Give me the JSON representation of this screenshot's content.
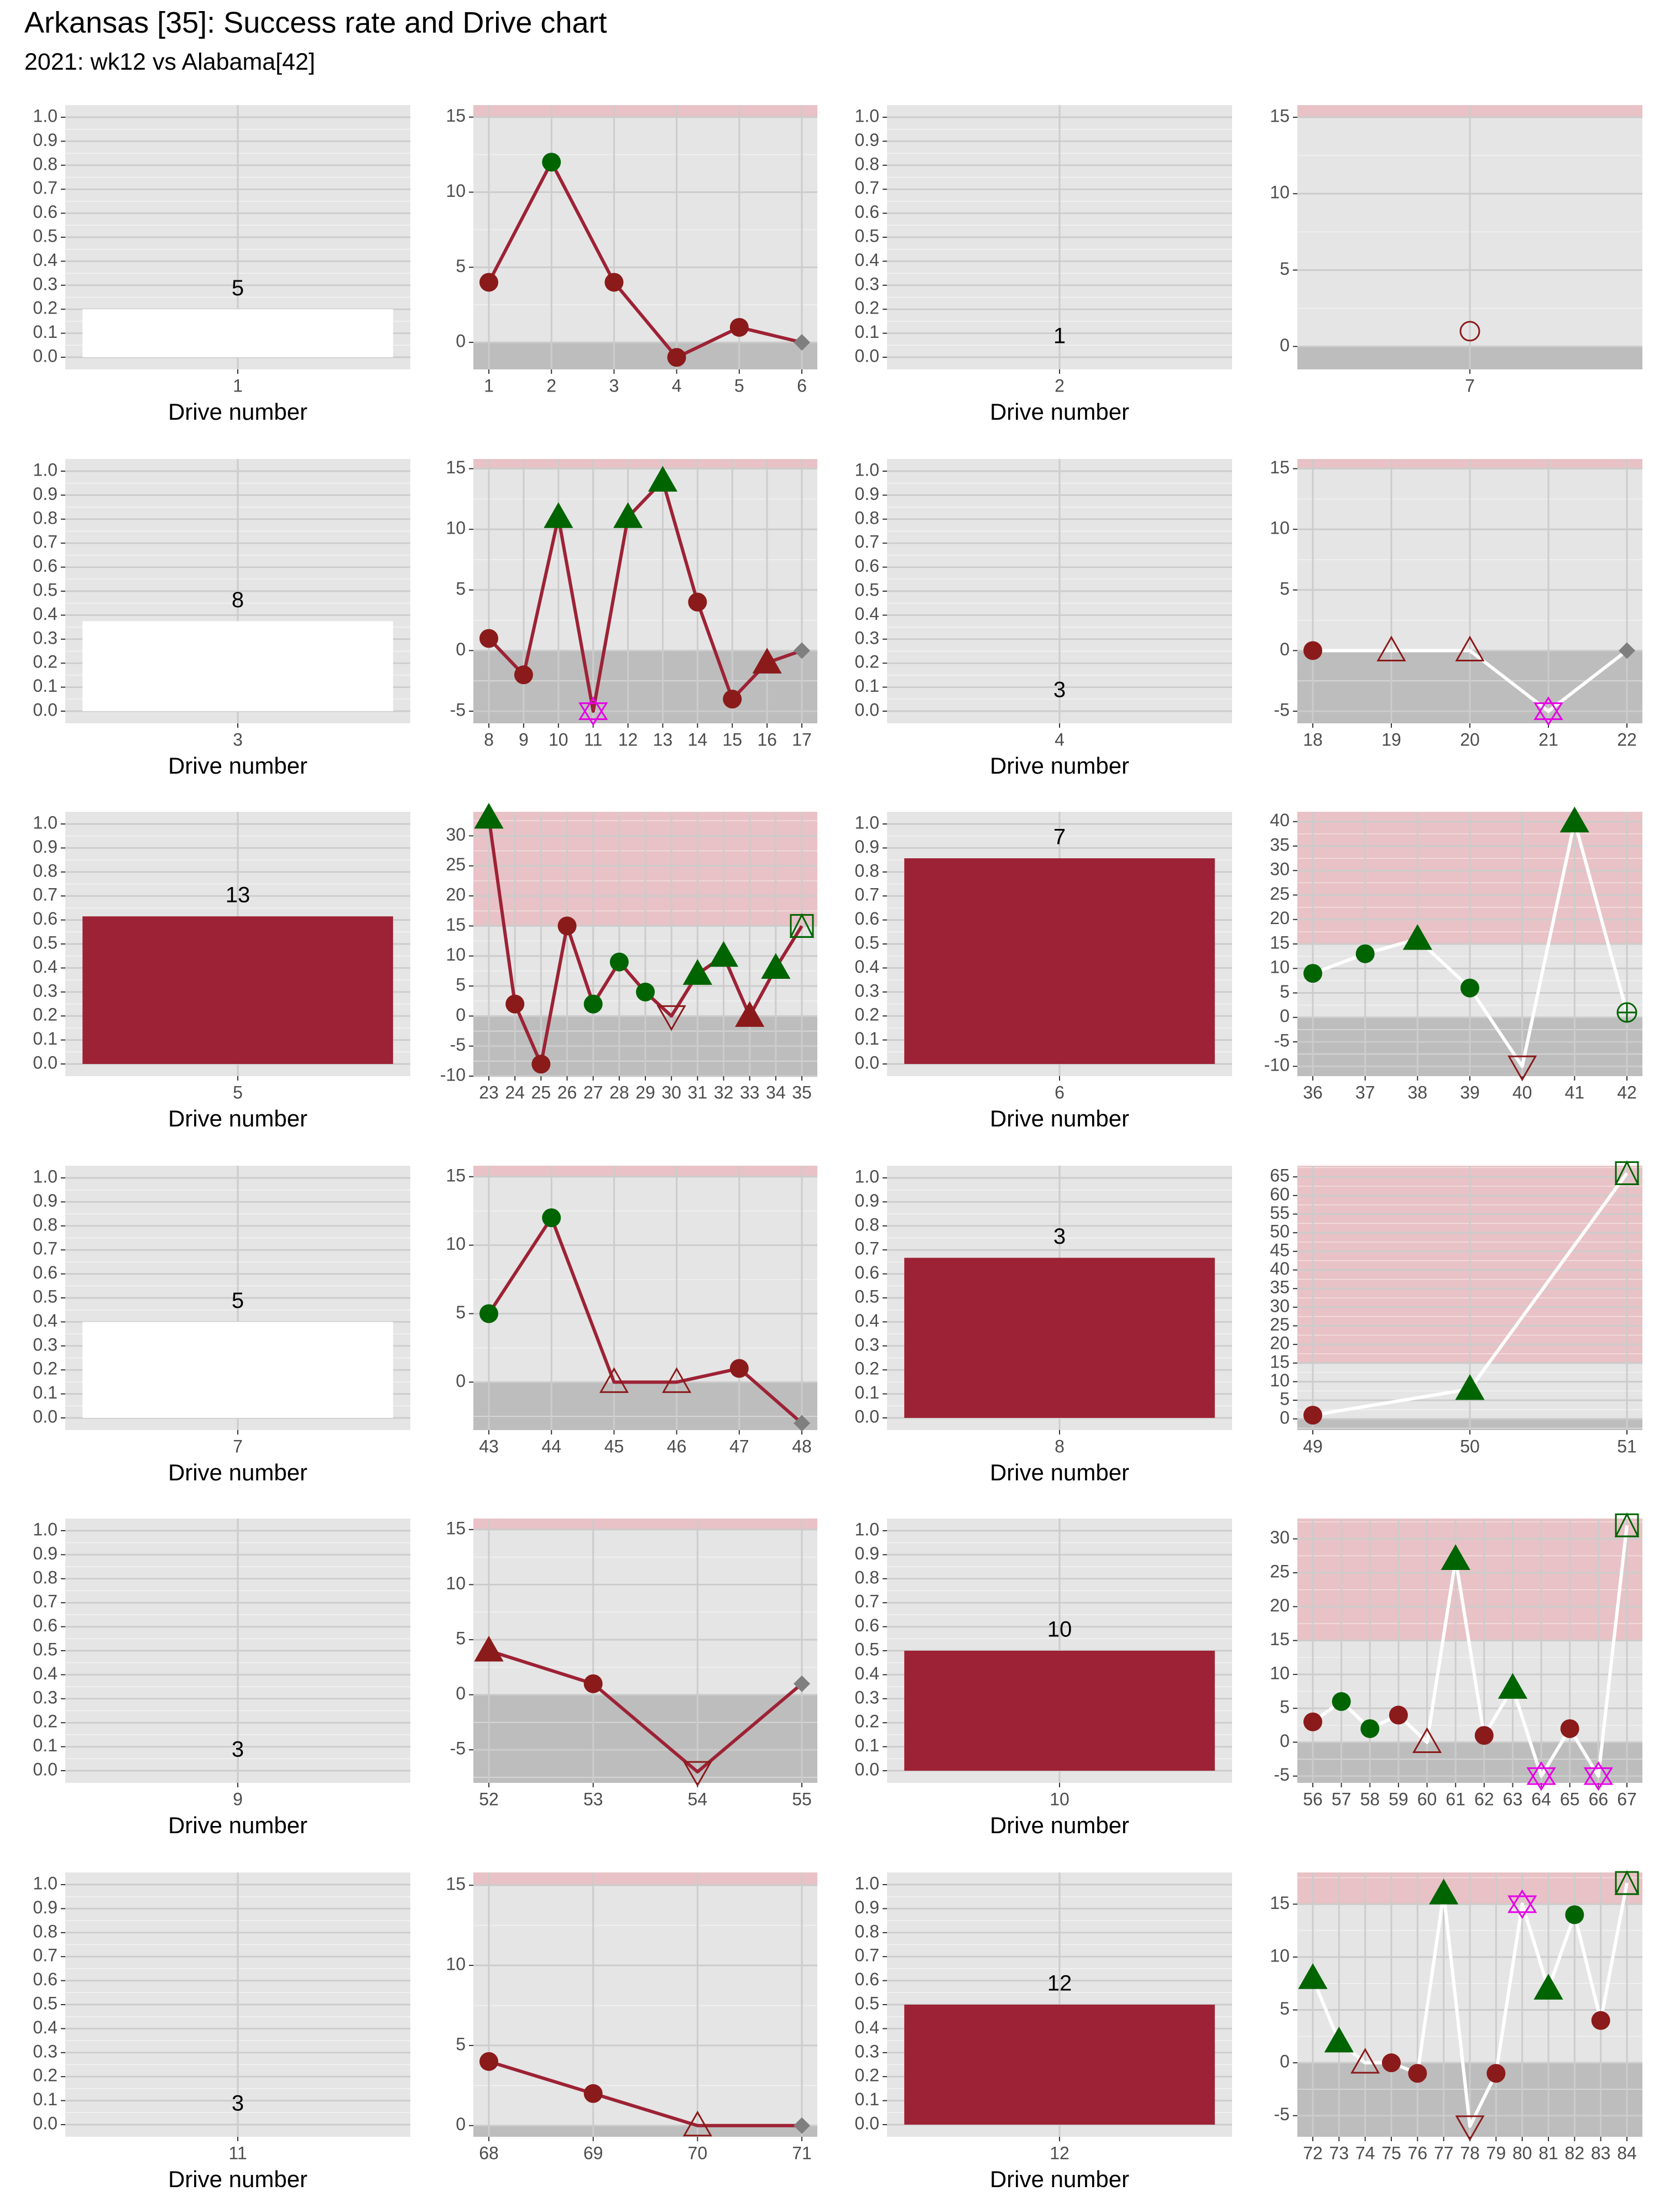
{
  "title": "Arkansas [35]: Success rate and Drive chart",
  "subtitle": "2021: wk12 vs Alabama[42]",
  "colors": {
    "panel_bg": "#e5e5e5",
    "grid": "#cccccc",
    "bar_fill": "#9d2235",
    "bar_white": "#ffffff",
    "line_team": "#9d2235",
    "line_white": "#ffffff",
    "negative_zone": "#bdbdbd",
    "redzone": "#e8c2c6",
    "success_green": "#006400",
    "fail_red": "#8b1a1a",
    "end_gray": "#7f7f7f",
    "turnover_magenta": "#e600e6"
  },
  "markers": {
    "circle": "filled circle",
    "triangle": "filled triangle",
    "triangle_open": "open triangle",
    "triangle_down_open": "open downward triangle",
    "diamond": "end-of-drive diamond",
    "star": "turnover star",
    "square_box": "touchdown boxed triangle",
    "circle_open": "open circle",
    "circle_plus": "circled plus"
  },
  "chart_data": [
    {
      "type": "bar",
      "drive": "1",
      "value": 0.2,
      "label": "5",
      "fill": "white",
      "xlabel": "Drive number",
      "ylim": [
        0,
        1
      ]
    },
    {
      "type": "line",
      "color": "red",
      "ylim": [
        -1.8,
        15.8
      ],
      "yticks": [
        0,
        5,
        10,
        15
      ],
      "x": [
        1,
        2,
        3,
        4,
        5,
        6
      ],
      "y": [
        4,
        12,
        4,
        -1,
        1,
        0
      ],
      "markers": [
        "circle",
        "circle",
        "circle",
        "circle",
        "circle",
        "diamond"
      ],
      "colors": [
        "red",
        "green",
        "red",
        "red",
        "red",
        "gray"
      ]
    },
    {
      "type": "bar",
      "drive": "2",
      "value": 0,
      "label": "1",
      "fill": "white",
      "xlabel": "Drive number",
      "ylim": [
        0,
        1
      ]
    },
    {
      "type": "line",
      "color": "white",
      "ylim": [
        -1.5,
        15.8
      ],
      "yticks": [
        0,
        5,
        10,
        15
      ],
      "x": [
        7
      ],
      "y": [
        1
      ],
      "markers": [
        "circle_open"
      ],
      "colors": [
        "red"
      ]
    },
    {
      "type": "bar",
      "drive": "3",
      "value": 0.375,
      "label": "8",
      "fill": "white",
      "xlabel": "Drive number",
      "ylim": [
        0,
        1
      ]
    },
    {
      "type": "line",
      "color": "red",
      "ylim": [
        -6,
        15.8
      ],
      "yticks": [
        -5,
        0,
        5,
        10,
        15
      ],
      "x": [
        8,
        9,
        10,
        11,
        12,
        13,
        14,
        15,
        16,
        17
      ],
      "y": [
        1,
        -2,
        11,
        -5,
        11,
        14,
        4,
        -4,
        -1,
        0
      ],
      "markers": [
        "circle",
        "circle",
        "triangle",
        "star",
        "triangle",
        "triangle",
        "circle",
        "circle",
        "triangle",
        "diamond"
      ],
      "colors": [
        "red",
        "red",
        "green",
        "magenta",
        "green",
        "green",
        "red",
        "red",
        "red",
        "gray"
      ]
    },
    {
      "type": "bar",
      "drive": "4",
      "value": 0,
      "label": "3",
      "fill": "white",
      "xlabel": "Drive number",
      "ylim": [
        0,
        1
      ]
    },
    {
      "type": "line",
      "color": "white",
      "ylim": [
        -6,
        15.8
      ],
      "yticks": [
        -5,
        0,
        5,
        10,
        15
      ],
      "x": [
        18,
        19,
        20,
        21,
        22
      ],
      "y": [
        0,
        0,
        0,
        -5,
        0
      ],
      "markers": [
        "circle",
        "triangle_open",
        "triangle_open",
        "star",
        "diamond"
      ],
      "colors": [
        "red",
        "red",
        "red",
        "magenta",
        "gray"
      ]
    },
    {
      "type": "bar",
      "drive": "5",
      "value": 0.615,
      "label": "13",
      "fill": "red",
      "xlabel": "Drive number",
      "ylim": [
        0,
        1
      ]
    },
    {
      "type": "line",
      "color": "red",
      "ylim": [
        -10,
        34
      ],
      "yticks": [
        -10,
        -5,
        0,
        5,
        10,
        15,
        20,
        25,
        30
      ],
      "x": [
        23,
        24,
        25,
        26,
        27,
        28,
        29,
        30,
        31,
        32,
        33,
        34,
        35
      ],
      "y": [
        33,
        2,
        -8,
        15,
        2,
        9,
        4,
        0,
        7,
        10,
        0,
        8,
        15
      ],
      "markers": [
        "triangle",
        "circle",
        "circle",
        "circle",
        "circle",
        "circle",
        "circle",
        "triangle_down_open",
        "triangle",
        "triangle",
        "triangle",
        "triangle",
        "square_box"
      ],
      "colors": [
        "green",
        "red",
        "red",
        "red",
        "green",
        "green",
        "green",
        "red",
        "green",
        "green",
        "red",
        "green",
        "green"
      ]
    },
    {
      "type": "bar",
      "drive": "6",
      "value": 0.857,
      "label": "7",
      "fill": "red",
      "xlabel": "Drive number",
      "ylim": [
        0,
        1
      ]
    },
    {
      "type": "line",
      "color": "white",
      "ylim": [
        -12,
        42
      ],
      "yticks": [
        -10,
        -5,
        0,
        5,
        10,
        15,
        20,
        25,
        30,
        35,
        40
      ],
      "x": [
        36,
        37,
        38,
        39,
        40,
        41,
        42
      ],
      "y": [
        9,
        13,
        16,
        6,
        -10,
        40,
        1
      ],
      "markers": [
        "circle",
        "circle",
        "triangle",
        "circle",
        "triangle_down_open",
        "triangle",
        "circle_plus"
      ],
      "colors": [
        "green",
        "green",
        "green",
        "green",
        "red",
        "green",
        "green"
      ]
    },
    {
      "type": "bar",
      "drive": "7",
      "value": 0.4,
      "label": "5",
      "fill": "white",
      "xlabel": "Drive number",
      "ylim": [
        0,
        1
      ]
    },
    {
      "type": "line",
      "color": "red",
      "ylim": [
        -3.5,
        15.8
      ],
      "yticks": [
        0,
        5,
        10,
        15
      ],
      "x": [
        43,
        44,
        45,
        46,
        47,
        48
      ],
      "y": [
        5,
        12,
        0,
        0,
        1,
        -3
      ],
      "markers": [
        "circle",
        "circle",
        "triangle_open",
        "triangle_open",
        "circle",
        "diamond"
      ],
      "colors": [
        "green",
        "green",
        "red",
        "red",
        "red",
        "gray"
      ]
    },
    {
      "type": "bar",
      "drive": "8",
      "value": 0.667,
      "label": "3",
      "fill": "red",
      "xlabel": "Drive number",
      "ylim": [
        0,
        1
      ]
    },
    {
      "type": "line",
      "color": "white",
      "ylim": [
        -3,
        68
      ],
      "yticks": [
        0,
        5,
        10,
        15,
        20,
        25,
        30,
        35,
        40,
        45,
        50,
        55,
        60,
        65
      ],
      "x": [
        49,
        50,
        51
      ],
      "y": [
        1,
        8,
        66
      ],
      "markers": [
        "circle",
        "triangle",
        "square_box"
      ],
      "colors": [
        "red",
        "green",
        "green"
      ]
    },
    {
      "type": "bar",
      "drive": "9",
      "value": 0,
      "label": "3",
      "fill": "white",
      "xlabel": "Drive number",
      "ylim": [
        0,
        1
      ]
    },
    {
      "type": "line",
      "color": "red",
      "ylim": [
        -8,
        16
      ],
      "yticks": [
        -5,
        0,
        5,
        10,
        15
      ],
      "x": [
        52,
        53,
        54,
        55
      ],
      "y": [
        4,
        1,
        -7,
        1
      ],
      "markers": [
        "triangle",
        "circle",
        "triangle_down_open",
        "diamond"
      ],
      "colors": [
        "red",
        "red",
        "red",
        "gray"
      ]
    },
    {
      "type": "bar",
      "drive": "10",
      "value": 0.5,
      "label": "10",
      "fill": "red",
      "xlabel": "Drive number",
      "ylim": [
        0,
        1
      ]
    },
    {
      "type": "line",
      "color": "white",
      "ylim": [
        -6,
        33
      ],
      "yticks": [
        -5,
        0,
        5,
        10,
        15,
        20,
        25,
        30
      ],
      "x": [
        56,
        57,
        58,
        59,
        60,
        61,
        62,
        63,
        64,
        65,
        66,
        67
      ],
      "y": [
        3,
        6,
        2,
        4,
        0,
        27,
        1,
        8,
        -5,
        2,
        -5,
        32
      ],
      "markers": [
        "circle",
        "circle",
        "circle",
        "circle",
        "triangle_open",
        "triangle",
        "circle",
        "triangle",
        "star",
        "circle",
        "star",
        "square_box"
      ],
      "colors": [
        "red",
        "green",
        "green",
        "red",
        "red",
        "green",
        "red",
        "green",
        "magenta",
        "red",
        "magenta",
        "green"
      ]
    },
    {
      "type": "bar",
      "drive": "11",
      "value": 0,
      "label": "3",
      "fill": "white",
      "xlabel": "Drive number",
      "ylim": [
        0,
        1
      ]
    },
    {
      "type": "line",
      "color": "red",
      "ylim": [
        -0.7,
        15.8
      ],
      "yticks": [
        0,
        5,
        10,
        15
      ],
      "x": [
        68,
        69,
        70,
        71
      ],
      "y": [
        4,
        2,
        0,
        0
      ],
      "markers": [
        "circle",
        "circle",
        "triangle_open",
        "diamond"
      ],
      "colors": [
        "red",
        "red",
        "red",
        "gray"
      ]
    },
    {
      "type": "bar",
      "drive": "12",
      "value": 0.5,
      "label": "12",
      "fill": "red",
      "xlabel": "Drive number",
      "ylim": [
        0,
        1
      ]
    },
    {
      "type": "line",
      "color": "white",
      "ylim": [
        -7,
        18
      ],
      "yticks": [
        -5,
        0,
        5,
        10,
        15
      ],
      "x": [
        72,
        73,
        74,
        75,
        76,
        77,
        78,
        79,
        80,
        81,
        82,
        83,
        84
      ],
      "y": [
        8,
        2,
        0,
        0,
        -1,
        16,
        -6,
        -1,
        15,
        7,
        14,
        4,
        17
      ],
      "markers": [
        "triangle",
        "triangle",
        "triangle_open",
        "circle",
        "circle",
        "triangle",
        "triangle_down_open",
        "circle",
        "star",
        "triangle",
        "circle",
        "circle",
        "square_box"
      ],
      "colors": [
        "green",
        "green",
        "red",
        "red",
        "red",
        "green",
        "red",
        "red",
        "magenta",
        "green",
        "green",
        "red",
        "green"
      ]
    }
  ]
}
